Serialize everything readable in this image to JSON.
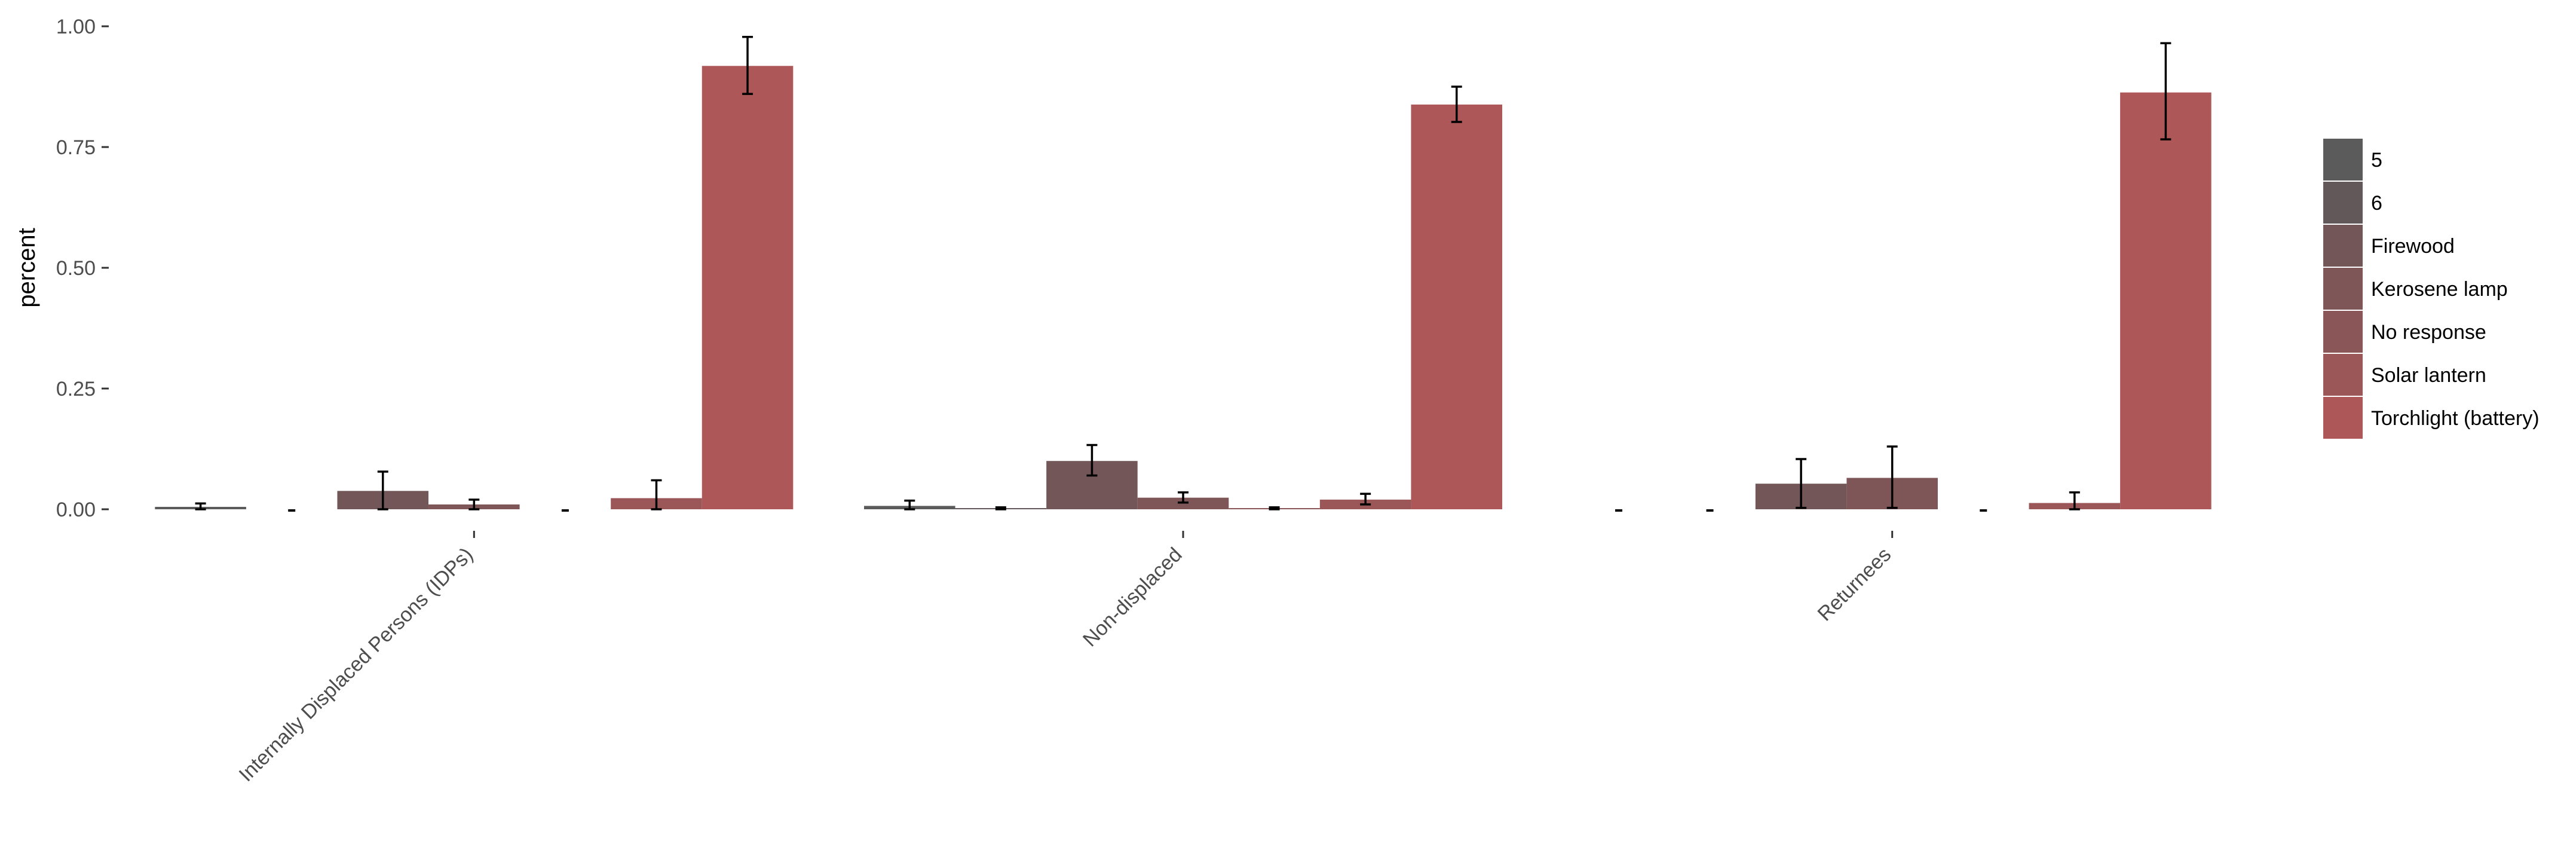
{
  "chart_data": {
    "type": "bar",
    "title": "",
    "xlabel": "",
    "ylabel": "percent",
    "ylim": [
      0,
      1.0
    ],
    "yticks": [
      "0.00",
      "0.25",
      "0.50",
      "0.75",
      "1.00"
    ],
    "yticks_values": [
      0,
      0.25,
      0.5,
      0.75,
      1.0
    ],
    "grid": false,
    "legend_position": "right",
    "categories": [
      "Internally Displaced Persons (IDPs)",
      "Non-displaced",
      "Returnees"
    ],
    "series": [
      {
        "name": "5",
        "color": "#5b5b5b",
        "values": [
          0.005,
          0.007,
          0
        ],
        "err_low": [
          0.0,
          0.0,
          0
        ],
        "err_high": [
          0.012,
          0.018,
          0
        ],
        "flat_line": [
          false,
          false,
          true
        ]
      },
      {
        "name": "6",
        "color": "#625859",
        "values": [
          0,
          0.002,
          0
        ],
        "err_low": [
          0,
          0.0,
          0
        ],
        "err_high": [
          0,
          0.004,
          0
        ],
        "flat_line": [
          true,
          false,
          true
        ]
      },
      {
        "name": "Firewood",
        "color": "#735657",
        "values": [
          0.038,
          0.1,
          0.053
        ],
        "err_low": [
          0.0,
          0.07,
          0.003
        ],
        "err_high": [
          0.078,
          0.133,
          0.104
        ]
      },
      {
        "name": "Kerosene lamp",
        "color": "#7e5657",
        "values": [
          0.01,
          0.024,
          0.065
        ],
        "err_low": [
          0.0,
          0.014,
          0.003
        ],
        "err_high": [
          0.02,
          0.035,
          0.13
        ]
      },
      {
        "name": "No response",
        "color": "#8a5658",
        "values": [
          0,
          0.002,
          0
        ],
        "err_low": [
          0,
          0.0,
          0
        ],
        "err_high": [
          0,
          0.004,
          0
        ],
        "flat_line": [
          true,
          false,
          true
        ]
      },
      {
        "name": "Solar lantern",
        "color": "#9b5658",
        "values": [
          0.023,
          0.02,
          0.013
        ],
        "err_low": [
          0.0,
          0.01,
          0.0
        ],
        "err_high": [
          0.06,
          0.032,
          0.035
        ]
      },
      {
        "name": "Torchlight (battery)",
        "color": "#ad5759",
        "values": [
          0.918,
          0.838,
          0.863
        ],
        "err_low": [
          0.86,
          0.802,
          0.766
        ],
        "err_high": [
          0.978,
          0.875,
          0.965
        ]
      }
    ]
  }
}
